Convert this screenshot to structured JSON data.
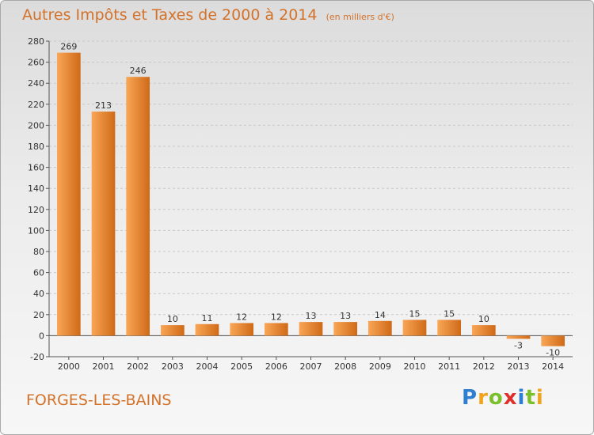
{
  "title": "Autres Impôts et Taxes de 2000 à 2014",
  "unit": "(en milliers d'€)",
  "location": "FORGES-LES-BAINS",
  "logo": {
    "letters": [
      {
        "ch": "P",
        "color": "#2e7fd1"
      },
      {
        "ch": "r",
        "color": "#f2a31a"
      },
      {
        "ch": "o",
        "color": "#7bbf2a"
      },
      {
        "ch": "x",
        "color": "#e0302a"
      },
      {
        "ch": "i",
        "color": "#2e7fd1"
      },
      {
        "ch": "t",
        "color": "#7bbf2a"
      },
      {
        "ch": "i",
        "color": "#f2a31a"
      }
    ]
  },
  "colors": {
    "bar_light": "#f9a656",
    "bar_dark": "#cf6a17",
    "accent": "#d4722a",
    "grid": "#c8c8c8"
  },
  "chart_data": {
    "type": "bar",
    "categories": [
      "2000",
      "2001",
      "2002",
      "2003",
      "2004",
      "2005",
      "2006",
      "2007",
      "2008",
      "2009",
      "2010",
      "2011",
      "2012",
      "2013",
      "2014"
    ],
    "values": [
      269,
      213,
      246,
      10,
      11,
      12,
      12,
      13,
      13,
      14,
      15,
      15,
      10,
      -3,
      -10
    ],
    "data_labels": [
      "269",
      "213",
      "246",
      "10",
      "11",
      "12",
      "12",
      "13",
      "13",
      "14",
      "15",
      "15",
      "10",
      "-3",
      "-10"
    ],
    "ylim": [
      -20,
      280
    ],
    "yticks": [
      -20,
      0,
      20,
      40,
      60,
      80,
      100,
      120,
      140,
      160,
      180,
      200,
      220,
      240,
      260,
      280
    ],
    "grid": true
  }
}
